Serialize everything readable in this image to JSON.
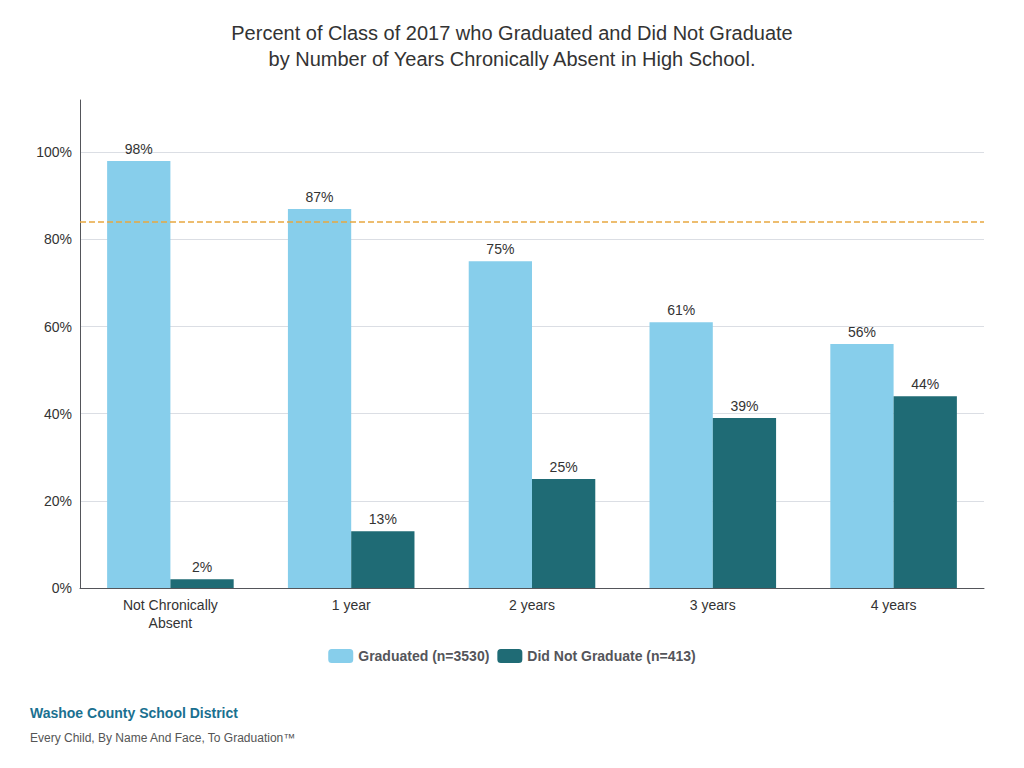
{
  "chart_data": {
    "type": "bar",
    "title": "Percent of Class of 2017 who Graduated and Did Not Graduate\nby Number of Years Chronically Absent in High School.",
    "categories": [
      "Not Chronically\nAbsent",
      "1 year",
      "2 years",
      "3 years",
      "4 years"
    ],
    "series": [
      {
        "name": "Graduated (n=3530)",
        "color": "#87CEEB",
        "values": [
          98,
          87,
          75,
          61,
          56
        ],
        "value_labels": [
          "98%",
          "87%",
          "75%",
          "61%",
          "56%"
        ]
      },
      {
        "name": "Did Not Graduate (n=413)",
        "color": "#1F6B75",
        "values": [
          2,
          13,
          25,
          39,
          44
        ],
        "value_labels": [
          "2%",
          "13%",
          "25%",
          "39%",
          "44%"
        ]
      }
    ],
    "ylim": [
      0,
      112
    ],
    "yticks": [
      {
        "value": 0,
        "label": "0%"
      },
      {
        "value": 20,
        "label": "20%"
      },
      {
        "value": 40,
        "label": "40%"
      },
      {
        "value": 60,
        "label": "60%"
      },
      {
        "value": 80,
        "label": "80%"
      },
      {
        "value": 100,
        "label": "100%"
      }
    ],
    "grid": true,
    "data_labels": true,
    "legend": "bottom",
    "reference_line": {
      "y": 84,
      "color": "#E8A840",
      "line_style": "dashed"
    },
    "annotations": [
      {
        "text": "Washoe County School District",
        "color": "#1A7090"
      },
      {
        "text": "Every Child, By Name And Face, To Graduation™",
        "color": "#555555"
      }
    ]
  }
}
